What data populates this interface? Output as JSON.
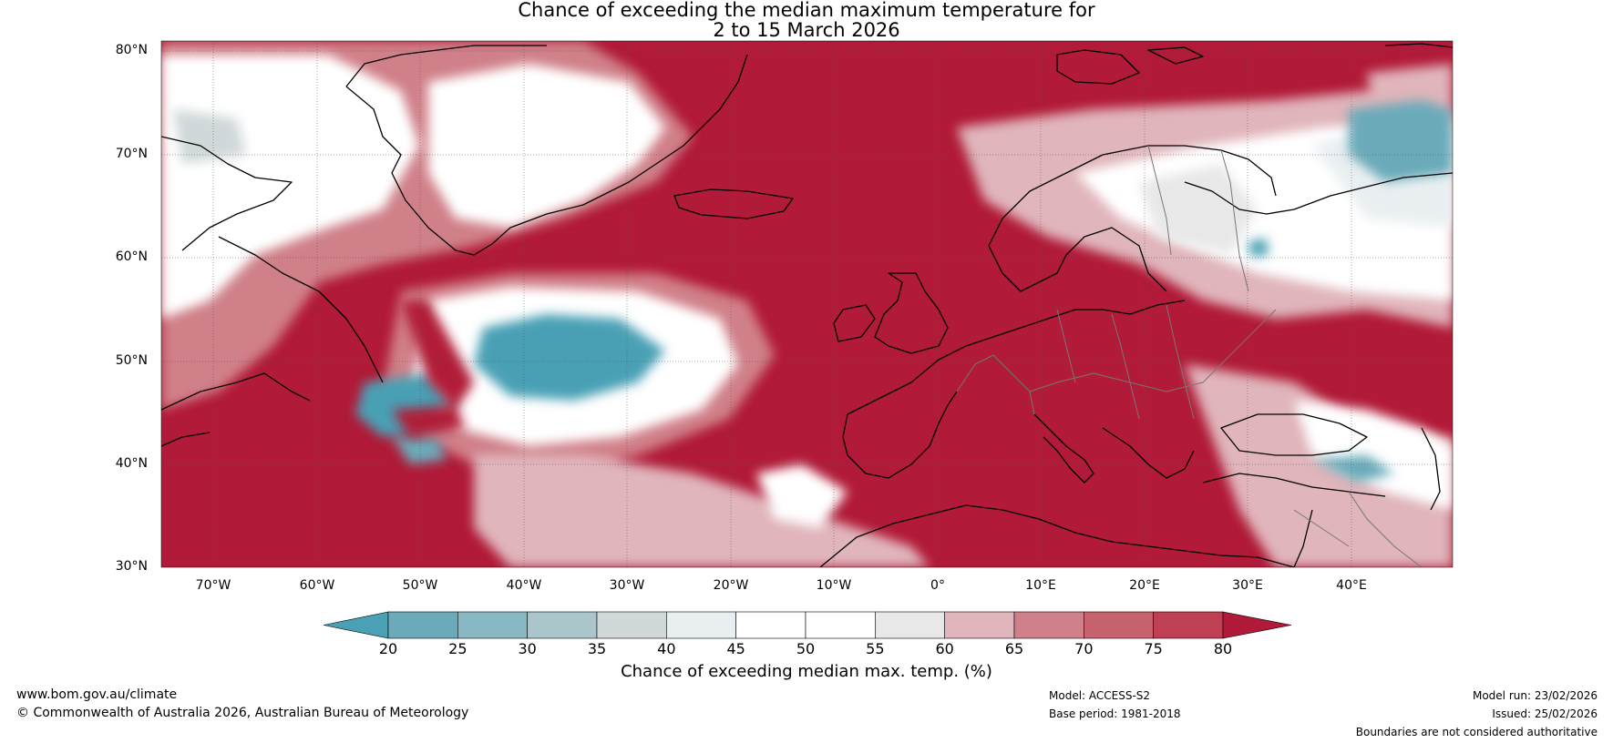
{
  "title_line1": "Chance of exceeding the median maximum temperature for",
  "title_line2": "2 to 15 March 2026",
  "lat_labels": [
    "80°N",
    "70°N",
    "60°N",
    "50°N",
    "40°N",
    "30°N"
  ],
  "lon_labels": [
    "70°W",
    "60°W",
    "50°W",
    "40°W",
    "30°W",
    "20°W",
    "10°W",
    "0°",
    "10°E",
    "20°E",
    "30°E",
    "40°E"
  ],
  "colorbar": {
    "ticks": [
      "20",
      "25",
      "30",
      "35",
      "40",
      "45",
      "50",
      "55",
      "60",
      "65",
      "70",
      "75",
      "80"
    ],
    "colors": [
      "#4aa0b5",
      "#6aaab9",
      "#88b8c3",
      "#aac6cb",
      "#d0d8da",
      "#e9eff1",
      "#ffffff",
      "#ffffff",
      "#e8e8e8",
      "#e0b5bb",
      "#d08089",
      "#c6636f",
      "#bf3f53",
      "#b11a38"
    ],
    "label": "Chance of exceeding median max. temp. (%)"
  },
  "footer": {
    "url": "www.bom.gov.au/climate",
    "copyright": "© Commonwealth of Australia 2026, Australian Bureau of Meteorology",
    "model": "Model: ACCESS-S2",
    "base_period": "Base period: 1981-2018",
    "model_run": "Model run: 23/02/2026",
    "issued": "Issued: 25/02/2026",
    "disclaimer": "Boundaries are not considered authoritative"
  }
}
